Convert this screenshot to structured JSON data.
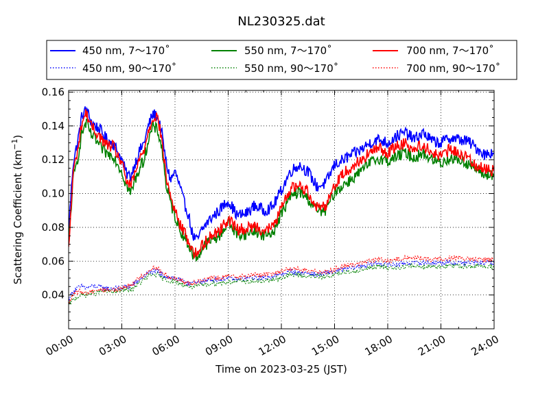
{
  "chart_data": {
    "type": "line",
    "title": "NL230325.dat",
    "xlabel": "Time on 2023-03-25 (JST)",
    "ylabel_main": "Scattering Coefficient (km",
    "ylabel_sup": "−1",
    "ylabel_close": ")",
    "xlim": [
      "2023-03-25 00:00",
      "2023-03-26 00:00"
    ],
    "ylim": [
      0.02,
      0.161
    ],
    "x_ticks": [
      "00:00",
      "03:00",
      "06:00",
      "09:00",
      "12:00",
      "15:00",
      "18:00",
      "21:00",
      "24:00"
    ],
    "y_ticks": [
      "0.04",
      "0.06",
      "0.08",
      "0.10",
      "0.12",
      "0.14",
      "0.16"
    ],
    "y_tick_values": [
      0.04,
      0.06,
      0.08,
      0.1,
      0.12,
      0.14,
      0.16
    ],
    "grid": true,
    "legend_position": "top (above plot)",
    "x_hours": [
      0.0,
      0.25,
      0.5,
      0.75,
      1.0,
      1.25,
      1.5,
      1.75,
      2.0,
      2.25,
      2.5,
      2.75,
      3.0,
      3.25,
      3.5,
      3.75,
      4.0,
      4.25,
      4.5,
      4.75,
      5.0,
      5.25,
      5.5,
      5.75,
      6.0,
      6.25,
      6.5,
      6.75,
      7.0,
      7.25,
      7.5,
      7.75,
      8.0,
      8.5,
      9.0,
      9.5,
      10.0,
      10.5,
      11.0,
      11.5,
      12.0,
      12.5,
      13.0,
      13.5,
      14.0,
      14.5,
      15.0,
      15.5,
      16.0,
      16.5,
      17.0,
      17.5,
      18.0,
      18.5,
      19.0,
      19.5,
      20.0,
      20.5,
      21.0,
      21.5,
      22.0,
      22.5,
      23.0,
      23.5,
      24.0
    ],
    "series": [
      {
        "name": "450 nm, 7～170˚",
        "color": "#0000ff",
        "style": "solid",
        "values": [
          0.078,
          0.118,
          0.13,
          0.146,
          0.15,
          0.143,
          0.14,
          0.138,
          0.134,
          0.131,
          0.13,
          0.125,
          0.12,
          0.112,
          0.11,
          0.118,
          0.125,
          0.13,
          0.14,
          0.147,
          0.146,
          0.136,
          0.118,
          0.108,
          0.113,
          0.105,
          0.095,
          0.088,
          0.075,
          0.072,
          0.078,
          0.082,
          0.085,
          0.09,
          0.096,
          0.087,
          0.088,
          0.093,
          0.09,
          0.092,
          0.102,
          0.113,
          0.117,
          0.113,
          0.104,
          0.106,
          0.117,
          0.12,
          0.123,
          0.126,
          0.13,
          0.132,
          0.13,
          0.134,
          0.136,
          0.132,
          0.136,
          0.131,
          0.13,
          0.133,
          0.132,
          0.131,
          0.127,
          0.123,
          0.125
        ]
      },
      {
        "name": "450 nm, 90～170˚",
        "color": "#0000ff",
        "style": "dotted",
        "values": [
          0.038,
          0.042,
          0.044,
          0.045,
          0.044,
          0.045,
          0.045,
          0.045,
          0.044,
          0.044,
          0.044,
          0.044,
          0.044,
          0.045,
          0.045,
          0.047,
          0.049,
          0.051,
          0.053,
          0.054,
          0.054,
          0.052,
          0.051,
          0.05,
          0.05,
          0.049,
          0.048,
          0.047,
          0.047,
          0.047,
          0.048,
          0.048,
          0.049,
          0.049,
          0.05,
          0.049,
          0.05,
          0.05,
          0.05,
          0.051,
          0.052,
          0.054,
          0.053,
          0.053,
          0.052,
          0.053,
          0.054,
          0.055,
          0.056,
          0.057,
          0.058,
          0.059,
          0.058,
          0.058,
          0.059,
          0.059,
          0.059,
          0.059,
          0.059,
          0.059,
          0.059,
          0.059,
          0.059,
          0.059,
          0.059
        ]
      },
      {
        "name": "550 nm, 7～170˚",
        "color": "#008000",
        "style": "solid",
        "values": [
          0.07,
          0.108,
          0.12,
          0.136,
          0.142,
          0.135,
          0.132,
          0.128,
          0.125,
          0.123,
          0.123,
          0.118,
          0.113,
          0.105,
          0.1,
          0.108,
          0.115,
          0.12,
          0.132,
          0.139,
          0.138,
          0.128,
          0.105,
          0.094,
          0.087,
          0.079,
          0.075,
          0.07,
          0.064,
          0.062,
          0.067,
          0.07,
          0.072,
          0.075,
          0.083,
          0.076,
          0.076,
          0.078,
          0.075,
          0.077,
          0.088,
          0.098,
          0.101,
          0.097,
          0.09,
          0.09,
          0.101,
          0.105,
          0.109,
          0.113,
          0.118,
          0.121,
          0.119,
          0.122,
          0.124,
          0.121,
          0.124,
          0.12,
          0.118,
          0.121,
          0.12,
          0.118,
          0.114,
          0.111,
          0.111
        ]
      },
      {
        "name": "550 nm, 90～170˚",
        "color": "#008000",
        "style": "dotted",
        "values": [
          0.034,
          0.037,
          0.039,
          0.04,
          0.04,
          0.041,
          0.041,
          0.042,
          0.042,
          0.042,
          0.042,
          0.042,
          0.043,
          0.043,
          0.043,
          0.045,
          0.047,
          0.049,
          0.051,
          0.052,
          0.052,
          0.05,
          0.049,
          0.048,
          0.048,
          0.047,
          0.046,
          0.045,
          0.045,
          0.045,
          0.046,
          0.046,
          0.047,
          0.047,
          0.048,
          0.048,
          0.048,
          0.048,
          0.048,
          0.049,
          0.05,
          0.052,
          0.052,
          0.051,
          0.051,
          0.051,
          0.052,
          0.053,
          0.054,
          0.055,
          0.056,
          0.057,
          0.056,
          0.056,
          0.057,
          0.057,
          0.057,
          0.057,
          0.057,
          0.057,
          0.057,
          0.057,
          0.057,
          0.057,
          0.057
        ]
      },
      {
        "name": "700 nm, 7～170˚",
        "color": "#ff0000",
        "style": "solid",
        "values": [
          0.066,
          0.112,
          0.125,
          0.142,
          0.148,
          0.14,
          0.137,
          0.134,
          0.13,
          0.128,
          0.128,
          0.123,
          0.118,
          0.108,
          0.104,
          0.112,
          0.12,
          0.126,
          0.137,
          0.145,
          0.146,
          0.132,
          0.11,
          0.098,
          0.09,
          0.082,
          0.078,
          0.072,
          0.066,
          0.064,
          0.069,
          0.072,
          0.075,
          0.078,
          0.085,
          0.079,
          0.079,
          0.081,
          0.078,
          0.08,
          0.091,
          0.103,
          0.105,
          0.101,
          0.092,
          0.093,
          0.105,
          0.112,
          0.116,
          0.12,
          0.124,
          0.127,
          0.124,
          0.128,
          0.13,
          0.126,
          0.129,
          0.124,
          0.122,
          0.126,
          0.124,
          0.121,
          0.117,
          0.114,
          0.114
        ]
      },
      {
        "name": "700 nm, 90～170˚",
        "color": "#ff0000",
        "style": "dotted",
        "values": [
          0.035,
          0.04,
          0.042,
          0.042,
          0.041,
          0.042,
          0.043,
          0.043,
          0.043,
          0.043,
          0.043,
          0.043,
          0.044,
          0.045,
          0.046,
          0.048,
          0.05,
          0.052,
          0.054,
          0.056,
          0.056,
          0.053,
          0.052,
          0.05,
          0.05,
          0.049,
          0.048,
          0.047,
          0.047,
          0.048,
          0.049,
          0.049,
          0.05,
          0.05,
          0.051,
          0.051,
          0.051,
          0.052,
          0.052,
          0.053,
          0.054,
          0.056,
          0.055,
          0.054,
          0.054,
          0.054,
          0.055,
          0.057,
          0.058,
          0.059,
          0.06,
          0.061,
          0.06,
          0.061,
          0.062,
          0.062,
          0.062,
          0.061,
          0.061,
          0.062,
          0.062,
          0.061,
          0.061,
          0.061,
          0.061
        ]
      }
    ]
  }
}
